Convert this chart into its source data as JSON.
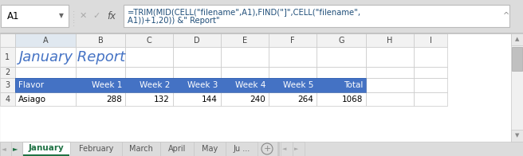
{
  "cell_ref": "A1",
  "formula_line1": "=TRIM(MID(CELL(\"filename\",A1),FIND(\"]\",CELL(\"filename\",",
  "formula_line2": "A1))+1,20)) &\" Report\"",
  "title_text": "January Report",
  "title_color": "#4472C4",
  "header_row": [
    "Flavor",
    "Week 1",
    "Week 2",
    "Week 3",
    "Week 4",
    "Week 5",
    "Total"
  ],
  "data_row": [
    "Asiago",
    "288",
    "132",
    "144",
    "240",
    "264",
    "1068"
  ],
  "header_bg": "#4472C4",
  "col_letters": [
    "A",
    "B",
    "C",
    "D",
    "E",
    "F",
    "G",
    "H",
    "I"
  ],
  "tab_active": "January",
  "tab_active_color": "#217346",
  "tab_others": [
    "February",
    "March",
    "April",
    "May",
    "Ju ..."
  ],
  "bg_color": "#DCDCDC",
  "cell_bg": "#FFFFFF",
  "grid_color": "#C8C8C8",
  "col_header_bg": "#F2F2F2",
  "row_header_bg": "#F2F2F2",
  "formula_bar_bg": "#FFFFFF",
  "scrollbar_bg": "#F0F0F0",
  "scrollbar_arrow_bg": "#F0F0F0",
  "formula_text_color": "#1F4E79",
  "icon_color": "#999999",
  "tab_border": "#C8C8C8"
}
